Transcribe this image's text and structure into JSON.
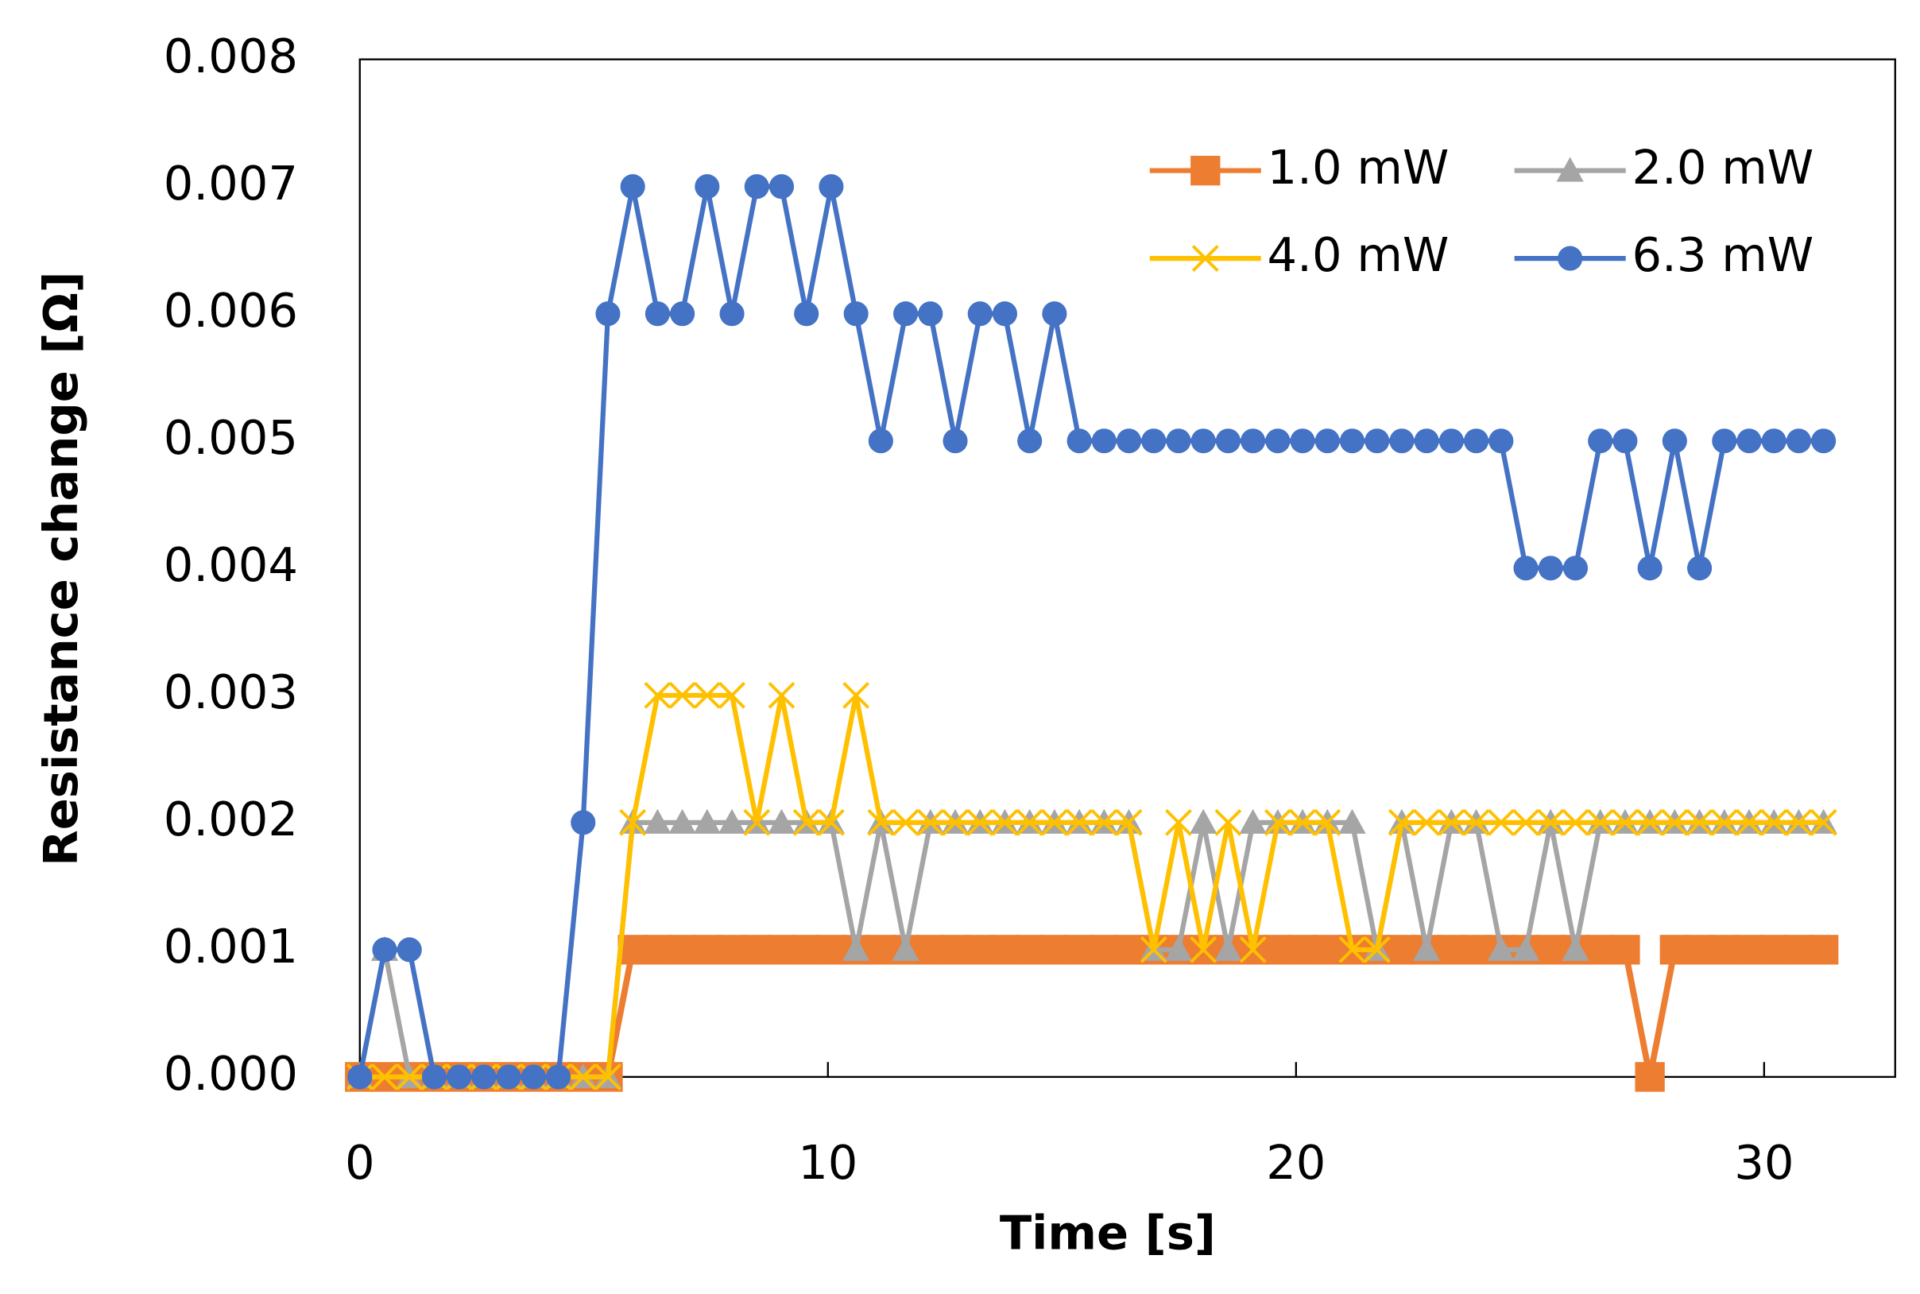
{
  "chart_data": {
    "type": "line",
    "xlabel": "Time [s]",
    "ylabel": "Resistance change [Ω]",
    "xlim": [
      0,
      32.8
    ],
    "xticks": [
      0,
      10,
      20,
      30
    ],
    "ylim": [
      0,
      0.008
    ],
    "yticks": [
      {
        "value": 0,
        "label": "0.000"
      },
      {
        "value": 0.001,
        "label": "0.001"
      },
      {
        "value": 0.002,
        "label": "0.002"
      },
      {
        "value": 0.003,
        "label": "0.003"
      },
      {
        "value": 0.004,
        "label": "0.004"
      },
      {
        "value": 0.005,
        "label": "0.005"
      },
      {
        "value": 0.006,
        "label": "0.006"
      },
      {
        "value": 0.007,
        "label": "0.007"
      },
      {
        "value": 0.008,
        "label": "0.008"
      }
    ],
    "grid": false,
    "legend": "upper right",
    "x": [
      0,
      0.53,
      1.06,
      1.59,
      2.12,
      2.65,
      3.18,
      3.71,
      4.24,
      4.77,
      5.3,
      5.83,
      6.36,
      6.89,
      7.42,
      7.95,
      8.48,
      9.01,
      9.54,
      10.07,
      10.6,
      11.13,
      11.66,
      12.19,
      12.72,
      13.25,
      13.78,
      14.31,
      14.84,
      15.37,
      15.9,
      16.43,
      16.96,
      17.49,
      18.02,
      18.55,
      19.08,
      19.61,
      20.14,
      20.67,
      21.2,
      21.73,
      22.26,
      22.79,
      23.32,
      23.85,
      24.38,
      24.91,
      25.44,
      25.97,
      26.5,
      27.03,
      27.56,
      28.09,
      28.62,
      29.15,
      29.68,
      30.21,
      30.74,
      31.27
    ],
    "series": [
      {
        "name": "1.0 mW",
        "color": "#ed7d31",
        "marker": "square",
        "values": [
          0,
          0,
          0,
          0,
          0,
          0,
          0,
          0,
          0,
          0,
          0,
          0.001,
          0.001,
          0.001,
          0.001,
          0.001,
          0.001,
          0.001,
          0.001,
          0.001,
          0.001,
          0.001,
          0.001,
          0.001,
          0.001,
          0.001,
          0.001,
          0.001,
          0.001,
          0.001,
          0.001,
          0.001,
          0.001,
          0.001,
          0.001,
          0.001,
          0.001,
          0.001,
          0.001,
          0.001,
          0.001,
          0.001,
          0.001,
          0.001,
          0.001,
          0.001,
          0.001,
          0.001,
          0.001,
          0.001,
          0.001,
          0.001,
          0,
          0.001,
          0.001,
          0.001,
          0.001,
          0.001,
          0.001,
          0.001
        ]
      },
      {
        "name": "2.0 mW",
        "color": "#a5a5a5",
        "marker": "triangle",
        "values": [
          0,
          0.001,
          0,
          0,
          0,
          0,
          0,
          0,
          0,
          0,
          0,
          0.002,
          0.002,
          0.002,
          0.002,
          0.002,
          0.002,
          0.002,
          0.002,
          0.002,
          0.001,
          0.002,
          0.001,
          0.002,
          0.002,
          0.002,
          0.002,
          0.002,
          0.002,
          0.002,
          0.002,
          0.002,
          0.001,
          0.001,
          0.002,
          0.001,
          0.002,
          0.002,
          0.002,
          0.002,
          0.002,
          0.001,
          0.002,
          0.001,
          0.002,
          0.002,
          0.001,
          0.001,
          0.002,
          0.001,
          0.002,
          0.002,
          0.002,
          0.002,
          0.002,
          0.002,
          0.002,
          0.002,
          0.002,
          0.002
        ]
      },
      {
        "name": "4.0 mW",
        "color": "#ffc000",
        "marker": "x",
        "values": [
          0,
          0,
          0,
          0,
          0,
          0,
          0,
          0,
          0,
          0,
          0,
          0.002,
          0.003,
          0.003,
          0.003,
          0.003,
          0.002,
          0.003,
          0.002,
          0.002,
          0.003,
          0.002,
          0.002,
          0.002,
          0.002,
          0.002,
          0.002,
          0.002,
          0.002,
          0.002,
          0.002,
          0.002,
          0.001,
          0.002,
          0.001,
          0.002,
          0.001,
          0.002,
          0.002,
          0.002,
          0.001,
          0.001,
          0.002,
          0.002,
          0.002,
          0.002,
          0.002,
          0.002,
          0.002,
          0.002,
          0.002,
          0.002,
          0.002,
          0.002,
          0.002,
          0.002,
          0.002,
          0.002,
          0.002,
          0.002
        ]
      },
      {
        "name": "6.3 mW",
        "color": "#4472c4",
        "marker": "circle",
        "values": [
          0,
          0.001,
          0.001,
          0,
          0,
          0,
          0,
          0,
          0,
          0.002,
          0.006,
          0.007,
          0.006,
          0.006,
          0.007,
          0.006,
          0.007,
          0.007,
          0.006,
          0.007,
          0.006,
          0.005,
          0.006,
          0.006,
          0.005,
          0.006,
          0.006,
          0.005,
          0.006,
          0.005,
          0.005,
          0.005,
          0.005,
          0.005,
          0.005,
          0.005,
          0.005,
          0.005,
          0.005,
          0.005,
          0.005,
          0.005,
          0.005,
          0.005,
          0.005,
          0.005,
          0.005,
          0.004,
          0.004,
          0.004,
          0.005,
          0.005,
          0.004,
          0.005,
          0.004,
          0.005,
          0.005,
          0.005,
          0.005,
          0.005
        ]
      }
    ]
  }
}
